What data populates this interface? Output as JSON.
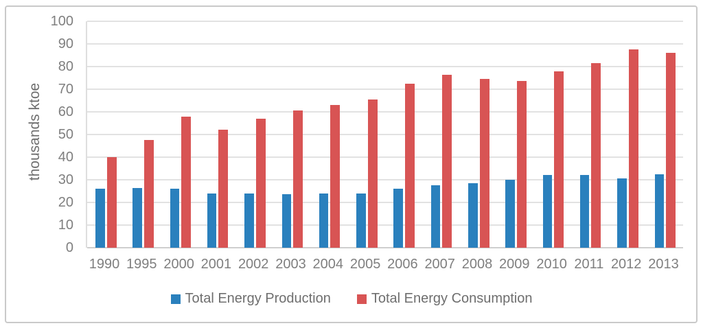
{
  "chart_data": {
    "type": "bar",
    "title": "",
    "xlabel": "",
    "ylabel": "thousands ktoe",
    "ylim": [
      0,
      100
    ],
    "ytick_step": 10,
    "grid": true,
    "legend_position": "bottom",
    "categories": [
      "1990",
      "1995",
      "2000",
      "2001",
      "2002",
      "2003",
      "2004",
      "2005",
      "2006",
      "2007",
      "2008",
      "2009",
      "2010",
      "2011",
      "2012",
      "2013"
    ],
    "series": [
      {
        "name": "Total Energy Production",
        "color": "#2a80bd",
        "values": [
          26,
          26.5,
          26,
          24,
          24,
          23.5,
          24,
          24,
          26,
          27.5,
          28.5,
          30,
          32,
          32,
          30.5,
          32.5
        ]
      },
      {
        "name": "Total Energy Consumption",
        "color": "#d85454",
        "values": [
          40,
          47.5,
          58,
          52,
          57,
          60.5,
          63,
          65.5,
          72.5,
          76.5,
          74.5,
          73.5,
          78,
          81.5,
          87.5,
          86
        ]
      }
    ]
  }
}
